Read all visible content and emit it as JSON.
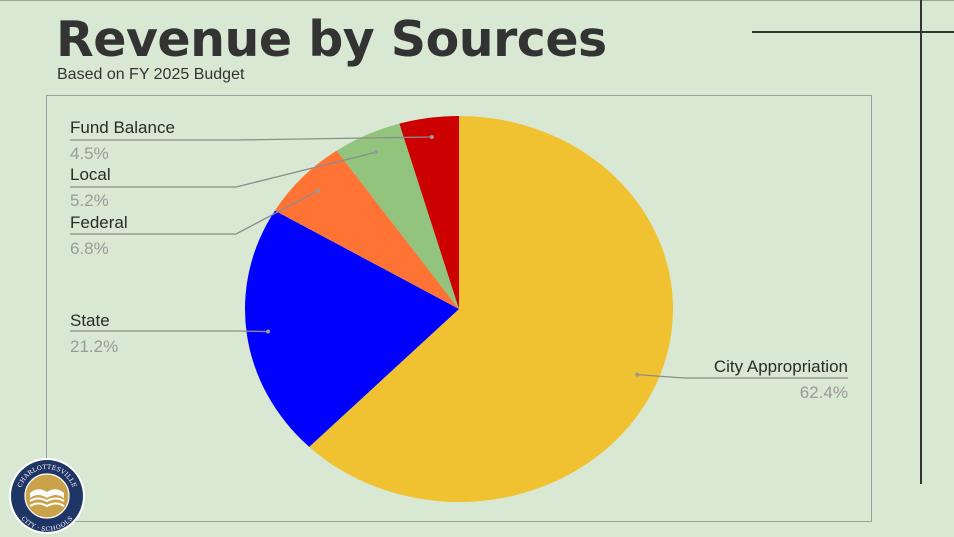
{
  "header": {
    "title": "Revenue by Sources",
    "subtitle": "Based on FY 2025 Budget"
  },
  "logo": {
    "text_top": "CHARLOTTESVILLE",
    "text_bottom": "CITY · SCHOOLS",
    "colors": {
      "ring": "#1f3566",
      "gold": "#c9a24a"
    }
  },
  "chart_data": {
    "type": "pie",
    "title": "",
    "start_angle_deg": 0,
    "direction": "clockwise",
    "slices": [
      {
        "label": "City Appropriation",
        "value": 62.4,
        "display": "62.4%",
        "color": "#f0c232"
      },
      {
        "label": "State",
        "value": 21.2,
        "display": "21.2%",
        "color": "#0000ff"
      },
      {
        "label": "Federal",
        "value": 6.8,
        "display": "6.8%",
        "color": "#ff7434"
      },
      {
        "label": "Local",
        "value": 5.2,
        "display": "5.2%",
        "color": "#92c47e"
      },
      {
        "label": "Fund Balance",
        "value": 4.5,
        "display": "4.5%",
        "color": "#cc0000"
      }
    ]
  }
}
